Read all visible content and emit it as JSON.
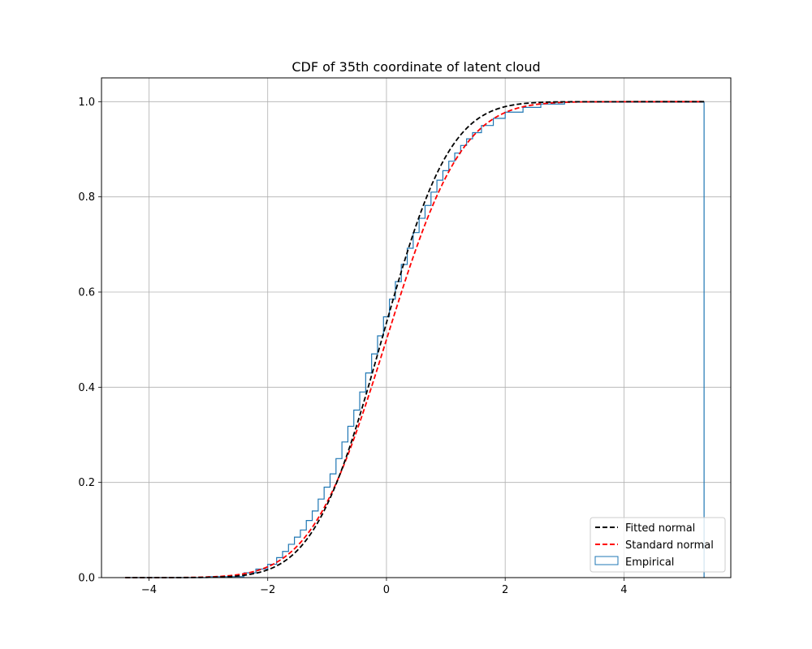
{
  "chart_data": {
    "type": "line",
    "title": "CDF of 35th coordinate of latent cloud",
    "xlabel": "",
    "ylabel": "",
    "xlim": [
      -4.8,
      5.8
    ],
    "ylim": [
      0,
      1.05
    ],
    "x_ticks": [
      -4,
      -2,
      0,
      2,
      4
    ],
    "x_tick_labels": [
      "−4",
      "−2",
      "0",
      "2",
      "4"
    ],
    "y_ticks": [
      0,
      0.2,
      0.4,
      0.6,
      0.8,
      1.0
    ],
    "y_tick_labels": [
      "0.0",
      "0.2",
      "0.4",
      "0.6",
      "0.8",
      "1.0"
    ],
    "grid": true,
    "legend_position": "bottom-right",
    "series": [
      {
        "name": "Fitted normal",
        "style": "dashed",
        "color": "#000000",
        "mu": -0.08,
        "sigma": 0.9,
        "x_range": [
          -4.4,
          5.35
        ]
      },
      {
        "name": "Standard normal",
        "style": "dashed",
        "color": "#ff0000",
        "mu": 0,
        "sigma": 1,
        "x_range": [
          -4.4,
          5.35
        ]
      },
      {
        "name": "Empirical",
        "style": "step",
        "color": "#1f77b4",
        "x": [
          -4.38,
          -3.0,
          -2.4,
          -2.2,
          -2.0,
          -1.85,
          -1.75,
          -1.65,
          -1.55,
          -1.45,
          -1.35,
          -1.25,
          -1.15,
          -1.05,
          -0.95,
          -0.85,
          -0.75,
          -0.65,
          -0.55,
          -0.45,
          -0.35,
          -0.25,
          -0.15,
          -0.05,
          0.05,
          0.15,
          0.25,
          0.35,
          0.45,
          0.55,
          0.65,
          0.75,
          0.85,
          0.95,
          1.05,
          1.15,
          1.25,
          1.35,
          1.45,
          1.6,
          1.8,
          2.0,
          2.3,
          2.6,
          3.0,
          5.35
        ],
        "y": [
          0.0,
          0.002,
          0.01,
          0.018,
          0.028,
          0.042,
          0.055,
          0.07,
          0.085,
          0.1,
          0.12,
          0.14,
          0.165,
          0.19,
          0.218,
          0.25,
          0.285,
          0.318,
          0.352,
          0.39,
          0.43,
          0.47,
          0.508,
          0.548,
          0.585,
          0.622,
          0.658,
          0.692,
          0.725,
          0.755,
          0.782,
          0.81,
          0.835,
          0.855,
          0.875,
          0.892,
          0.908,
          0.922,
          0.935,
          0.95,
          0.965,
          0.978,
          0.988,
          0.995,
          0.999,
          1.0
        ]
      }
    ]
  }
}
